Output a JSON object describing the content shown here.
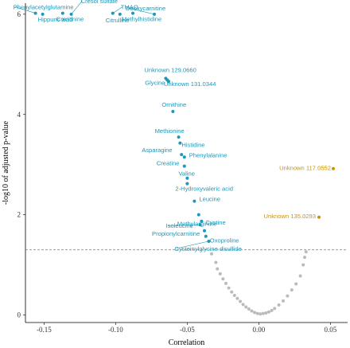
{
  "chart_data": {
    "type": "scatter",
    "title": "",
    "xlabel": "Correlation",
    "ylabel": "-log10 of adjusted p-value",
    "xlim": [
      -0.163,
      0.062
    ],
    "ylim": [
      -0.15,
      6.22
    ],
    "x_ticks": [
      -0.15,
      -0.1,
      -0.05,
      0.0,
      0.05
    ],
    "x_tick_labels": [
      "-0.15",
      "-0.10",
      "-0.05",
      "0.00",
      "0.05"
    ],
    "y_ticks": [
      0,
      2,
      4,
      6
    ],
    "y_tick_labels": [
      "0",
      "2",
      "4",
      "6"
    ],
    "grid": false,
    "threshold": 1.3,
    "colors": {
      "negative": "#1f97b8",
      "positive": "#c9930c",
      "nonsignificant": "#bbbbbb"
    },
    "labeled_points": [
      {
        "label": "Phenylacetylglutamine",
        "x": -0.156,
        "y": 6.02,
        "group": "negative"
      },
      {
        "label": "Hippuric acid",
        "x": -0.151,
        "y": 6.0,
        "group": "negative"
      },
      {
        "label": "Creatinine",
        "x": -0.137,
        "y": 6.02,
        "group": "negative"
      },
      {
        "label": "Cresol sulfate",
        "x": -0.131,
        "y": 6.0,
        "group": "negative"
      },
      {
        "label": "TMAO",
        "x": -0.102,
        "y": 6.02,
        "group": "negative"
      },
      {
        "label": "Citrulline",
        "x": -0.097,
        "y": 6.0,
        "group": "negative"
      },
      {
        "label": "Methylhistidine",
        "x": -0.088,
        "y": 6.02,
        "group": "negative"
      },
      {
        "label": "Deoxycarnitine",
        "x": -0.073,
        "y": 6.0,
        "group": "negative"
      },
      {
        "label": "Unknown 129.0660",
        "x": -0.065,
        "y": 4.72,
        "group": "negative"
      },
      {
        "label": "Glycine",
        "x": -0.064,
        "y": 4.69,
        "group": "negative"
      },
      {
        "label": "Unknown 131.0344",
        "x": -0.063,
        "y": 4.66,
        "group": "negative"
      },
      {
        "label": "Ornithine",
        "x": -0.06,
        "y": 4.06,
        "group": "negative"
      },
      {
        "label": "Methionine",
        "x": -0.056,
        "y": 3.55,
        "group": "negative"
      },
      {
        "label": "Histidine",
        "x": -0.055,
        "y": 3.43,
        "group": "negative"
      },
      {
        "label": "Asparagine",
        "x": -0.054,
        "y": 3.2,
        "group": "negative"
      },
      {
        "label": "Phenylalanine",
        "x": -0.052,
        "y": 3.15,
        "group": "negative"
      },
      {
        "label": "Creatine",
        "x": -0.052,
        "y": 2.97,
        "group": "negative"
      },
      {
        "label": "Valine",
        "x": -0.05,
        "y": 2.73,
        "group": "negative"
      },
      {
        "label": "2-Hydroxyvaleric acid",
        "x": -0.05,
        "y": 2.62,
        "group": "negative"
      },
      {
        "label": "Leucine",
        "x": -0.045,
        "y": 2.27,
        "group": "negative"
      },
      {
        "label": "Methylarginine",
        "x": -0.042,
        "y": 2.0,
        "group": "negative"
      },
      {
        "label": "Cystine",
        "x": -0.04,
        "y": 1.87,
        "group": "negative"
      },
      {
        "label": "Isoleucine",
        "x": -0.041,
        "y": 1.8,
        "group": "negative"
      },
      {
        "label": "Propionylcarnitine",
        "x": -0.038,
        "y": 1.68,
        "group": "negative"
      },
      {
        "label": "Oxoproline",
        "x": -0.037,
        "y": 1.57,
        "group": "negative"
      },
      {
        "label": "Cysteinylglycine disulfide",
        "x": -0.035,
        "y": 1.47,
        "group": "negative"
      },
      {
        "label": "Unknown 117.0552",
        "x": 0.052,
        "y": 2.92,
        "group": "positive"
      },
      {
        "label": "Unknown 135.0293",
        "x": 0.042,
        "y": 1.95,
        "group": "positive"
      }
    ],
    "nonsignificant_points": [
      {
        "x": -0.033,
        "y": 1.22
      },
      {
        "x": -0.03,
        "y": 1.05
      },
      {
        "x": -0.029,
        "y": 0.92
      },
      {
        "x": -0.027,
        "y": 0.82
      },
      {
        "x": -0.025,
        "y": 0.72
      },
      {
        "x": -0.023,
        "y": 0.63
      },
      {
        "x": -0.021,
        "y": 0.54
      },
      {
        "x": -0.019,
        "y": 0.46
      },
      {
        "x": -0.017,
        "y": 0.39
      },
      {
        "x": -0.015,
        "y": 0.33
      },
      {
        "x": -0.013,
        "y": 0.27
      },
      {
        "x": -0.011,
        "y": 0.21
      },
      {
        "x": -0.009,
        "y": 0.16
      },
      {
        "x": -0.007,
        "y": 0.12
      },
      {
        "x": -0.005,
        "y": 0.08
      },
      {
        "x": -0.003,
        "y": 0.05
      },
      {
        "x": -0.001,
        "y": 0.03
      },
      {
        "x": 0.001,
        "y": 0.02
      },
      {
        "x": 0.003,
        "y": 0.03
      },
      {
        "x": 0.005,
        "y": 0.04
      },
      {
        "x": 0.007,
        "y": 0.06
      },
      {
        "x": 0.009,
        "y": 0.09
      },
      {
        "x": 0.011,
        "y": 0.13
      },
      {
        "x": 0.014,
        "y": 0.2
      },
      {
        "x": 0.017,
        "y": 0.28
      },
      {
        "x": 0.02,
        "y": 0.38
      },
      {
        "x": 0.023,
        "y": 0.5
      },
      {
        "x": 0.026,
        "y": 0.62
      },
      {
        "x": 0.029,
        "y": 0.78
      },
      {
        "x": 0.031,
        "y": 1.0
      },
      {
        "x": 0.032,
        "y": 1.15
      },
      {
        "x": 0.033,
        "y": 1.26
      }
    ]
  }
}
